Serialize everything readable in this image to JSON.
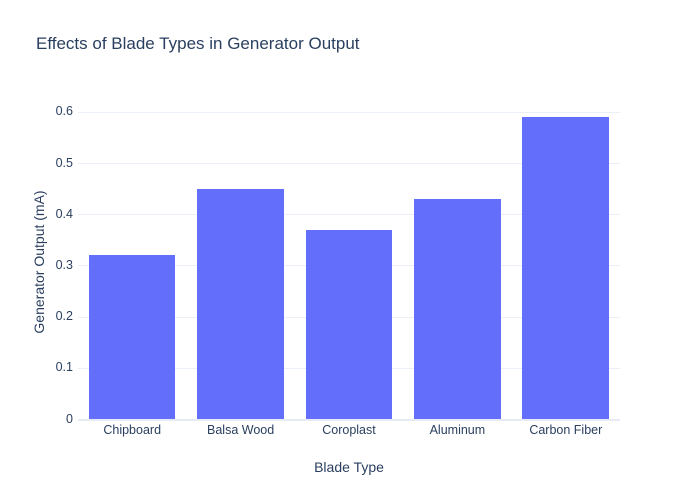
{
  "chart_data": {
    "type": "bar",
    "title": "Effects of Blade Types in Generator Output",
    "categories": [
      "Chipboard",
      "Balsa Wood",
      "Coroplast",
      "Aluminum",
      "Carbon Fiber"
    ],
    "values": [
      0.32,
      0.45,
      0.37,
      0.43,
      0.59
    ],
    "xlabel": "Blade Type",
    "ylabel": "Generator Output (mA)",
    "ylim": [
      0,
      0.623
    ],
    "yticks": [
      0,
      0.1,
      0.2,
      0.3,
      0.4,
      0.5,
      0.6
    ],
    "ytick_labels": [
      "0",
      "0.1",
      "0.2",
      "0.3",
      "0.4",
      "0.5",
      "0.6"
    ],
    "grid": true,
    "legend": false,
    "bargap": 0.2,
    "colors": {
      "bar": "#636efa",
      "grid": "#ebf0f8",
      "zeroline": "#e7ebf3",
      "text": "#2a3f5f",
      "background": "#ffffff"
    }
  }
}
